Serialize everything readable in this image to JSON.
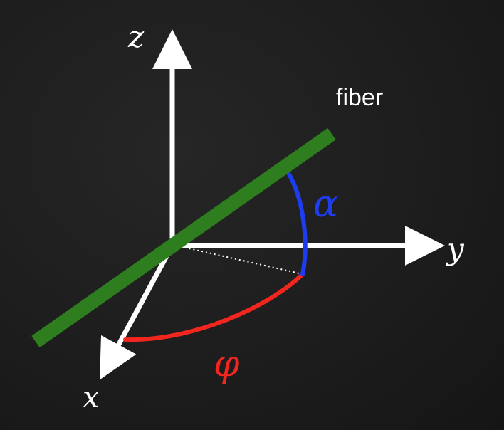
{
  "axes": {
    "z_label": "z",
    "y_label": "y",
    "x_label": "x"
  },
  "fiber": {
    "label": "fiber",
    "color": "#2e7d1f"
  },
  "angles": {
    "alpha": {
      "label": "α",
      "color": "#1f3df0"
    },
    "phi": {
      "label": "φ",
      "color": "#f2261f"
    }
  },
  "colors": {
    "axis": "#ffffff",
    "background": "#1b1b1b"
  }
}
